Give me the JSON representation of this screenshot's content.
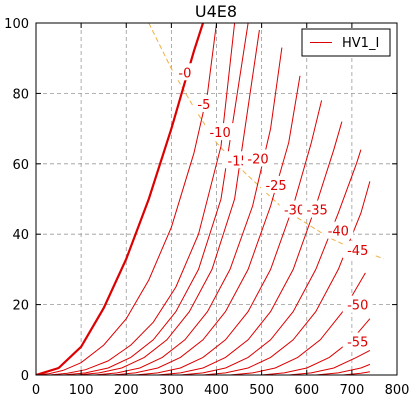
{
  "chart_data": {
    "type": "line",
    "title": "U4E8",
    "xlabel": "",
    "ylabel": "",
    "xlim": [
      0,
      800
    ],
    "ylim": [
      0,
      100
    ],
    "xticks": [
      "0",
      "100",
      "200",
      "300",
      "400",
      "500",
      "600",
      "700",
      "800"
    ],
    "yticks": [
      "0",
      "20",
      "40",
      "60",
      "80",
      "100"
    ],
    "grid": true,
    "legend": {
      "entries": [
        "HV1_I"
      ],
      "placement": "top-right"
    },
    "colors": {
      "curves": "#dd0000",
      "load_line": "#f0b040",
      "grid": "#999999"
    },
    "series": [
      {
        "label": "-0",
        "x": [
          0,
          50,
          100,
          150,
          200,
          250,
          300,
          350,
          370
        ],
        "y": [
          0,
          2,
          8,
          19,
          33,
          50,
          70,
          92,
          100
        ]
      },
      {
        "label": "-5",
        "x": [
          0,
          30,
          60,
          100,
          150,
          200,
          250,
          300,
          350,
          380,
          400
        ],
        "y": [
          0,
          0.4,
          1.3,
          3.5,
          8.5,
          16,
          27,
          42,
          63,
          80,
          100
        ]
      },
      {
        "label": "-10",
        "x": [
          30,
          70,
          110,
          160,
          210,
          260,
          310,
          360,
          410,
          440
        ],
        "y": [
          0,
          0.5,
          1.5,
          4,
          8.5,
          15,
          25,
          40,
          65,
          100
        ]
      },
      {
        "label": "-15",
        "x": [
          60,
          110,
          160,
          210,
          260,
          310,
          360,
          410,
          470
        ],
        "y": [
          0,
          0.6,
          2,
          5,
          10,
          18,
          30,
          50,
          100
        ]
      },
      {
        "label": "-20",
        "x": [
          90,
          140,
          190,
          240,
          290,
          340,
          390,
          440,
          495
        ],
        "y": [
          0,
          0.6,
          2,
          5,
          10,
          18,
          30,
          50,
          98
        ]
      },
      {
        "label": "-25",
        "x": [
          130,
          180,
          230,
          280,
          330,
          380,
          430,
          480,
          520,
          545
        ],
        "y": [
          0,
          0.6,
          2,
          5,
          10,
          18,
          30,
          48,
          70,
          93
        ]
      },
      {
        "label": "-30",
        "x": [
          170,
          220,
          270,
          320,
          370,
          420,
          470,
          520,
          560,
          585
        ],
        "y": [
          0,
          0.6,
          2,
          5,
          10,
          18,
          30,
          48,
          66,
          85
        ]
      },
      {
        "label": "-35",
        "x": [
          220,
          270,
          320,
          370,
          420,
          470,
          520,
          570,
          610,
          633
        ],
        "y": [
          0,
          0.6,
          2,
          5,
          10,
          18,
          30,
          48,
          66,
          78
        ]
      },
      {
        "label": "-40",
        "x": [
          270,
          320,
          370,
          420,
          470,
          520,
          570,
          620,
          660,
          678
        ],
        "y": [
          0,
          0.6,
          2,
          5,
          10,
          18,
          30,
          48,
          64,
          72
        ]
      },
      {
        "label": "-45",
        "x": [
          320,
          370,
          420,
          470,
          520,
          570,
          620,
          670,
          710,
          720
        ],
        "y": [
          0,
          0.6,
          2,
          5,
          10,
          18,
          30,
          46,
          60,
          64
        ]
      },
      {
        "label": "",
        "x": [
          370,
          420,
          470,
          520,
          570,
          620,
          670,
          720,
          740
        ],
        "y": [
          0,
          0.6,
          2,
          5,
          10,
          18,
          30,
          46,
          55
        ]
      },
      {
        "label": "-50",
        "x": [
          430,
          480,
          530,
          580,
          630,
          680,
          730
        ],
        "y": [
          0,
          0.6,
          2,
          5,
          10,
          18,
          29
        ]
      },
      {
        "label": "",
        "x": [
          500,
          550,
          600,
          650,
          700,
          740
        ],
        "y": [
          0,
          0.6,
          2,
          5,
          10,
          16
        ]
      },
      {
        "label": "-55",
        "x": [
          560,
          610,
          660,
          710,
          740
        ],
        "y": [
          0,
          0.6,
          2,
          5,
          7
        ]
      },
      {
        "label": "",
        "x": [
          620,
          670,
          720,
          740
        ],
        "y": [
          0,
          0.6,
          2,
          3
        ]
      },
      {
        "label": "",
        "x": [
          680,
          720,
          740
        ],
        "y": [
          0,
          0.5,
          0.9
        ]
      }
    ],
    "load_line": {
      "x": [
        250,
        300,
        350,
        400,
        450,
        500,
        550,
        600,
        650,
        700,
        750,
        770
      ],
      "y": [
        100,
        87,
        76,
        66,
        59,
        53,
        47,
        43,
        39,
        36,
        34,
        33
      ]
    }
  }
}
